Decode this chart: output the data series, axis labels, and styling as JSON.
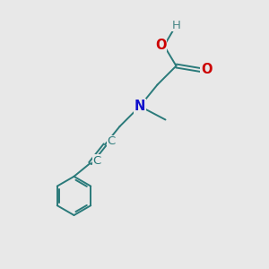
{
  "bg_color": "#e8e8e8",
  "bond_color": "#2a7a7a",
  "n_color": "#1111cc",
  "o_color": "#cc0000",
  "h_color": "#4a8888",
  "lw": 1.4,
  "font_size_atom": 10.5,
  "font_size_h": 9.5,
  "figsize": [
    3.0,
    3.0
  ],
  "dpi": 100,
  "xlim": [
    0,
    10
  ],
  "ylim": [
    0,
    10
  ]
}
